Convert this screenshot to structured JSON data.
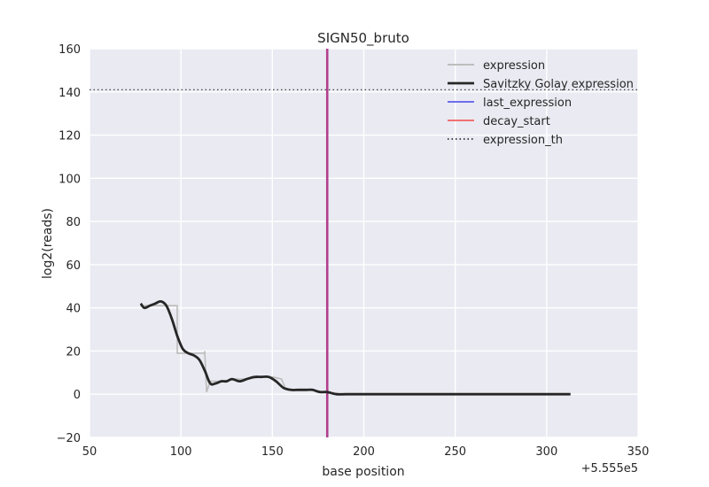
{
  "chart_data": {
    "type": "line",
    "title": "SIGN50_bruto",
    "xlabel": "base position",
    "ylabel": "log2(reads)",
    "offset_text": "+5.555e5",
    "xlim": [
      50,
      350
    ],
    "ylim": [
      -20,
      160
    ],
    "xticks": [
      50,
      100,
      150,
      200,
      250,
      300,
      350
    ],
    "yticks": [
      -20,
      0,
      20,
      40,
      60,
      80,
      100,
      120,
      140,
      160
    ],
    "xtick_labels": [
      "50",
      "100",
      "150",
      "200",
      "250",
      "300",
      "350"
    ],
    "ytick_labels": [
      "−20",
      "0",
      "20",
      "40",
      "60",
      "80",
      "100",
      "120",
      "140",
      "160"
    ],
    "grid": true,
    "legend_position": "top-right",
    "colors": {
      "plot_bg": "#eaeaf2",
      "grid": "#ffffff",
      "expression": "#bdbdbd",
      "savgol": "#262626",
      "last_expression": "#6e6ef0",
      "decay_start": "#f07272",
      "overlap_line": "#b0408e",
      "threshold": "#444444"
    },
    "series": [
      {
        "name": "expression",
        "style": "step",
        "x": [
          78,
          98,
          98,
          113,
          113,
          114,
          116,
          118,
          124,
          130,
          137,
          144,
          150,
          155,
          157,
          160,
          170,
          180,
          190,
          200,
          250,
          313
        ],
        "y": [
          41,
          41,
          19,
          19,
          20,
          1,
          6,
          6,
          6,
          7,
          7,
          8,
          8,
          7,
          3,
          2,
          2,
          1,
          0,
          0,
          0,
          0
        ]
      },
      {
        "name": "Savitzky Golay expression",
        "style": "smooth",
        "x": [
          78,
          80,
          83,
          86,
          89,
          92,
          95,
          98,
          101,
          104,
          107,
          110,
          113,
          116,
          119,
          122,
          125,
          128,
          132,
          136,
          140,
          144,
          148,
          152,
          156,
          160,
          164,
          168,
          172,
          176,
          180,
          185,
          190,
          195,
          200,
          210,
          250,
          313
        ],
        "y": [
          42,
          40,
          41,
          42,
          43,
          41,
          35,
          27,
          21,
          19,
          18,
          16,
          11,
          5,
          5,
          6,
          6,
          7,
          6,
          7,
          8,
          8,
          8,
          6,
          3,
          2,
          2,
          2,
          2,
          1,
          1,
          0,
          0,
          0,
          0,
          0,
          0,
          0
        ]
      },
      {
        "name": "last_expression",
        "style": "vline",
        "x": 180
      },
      {
        "name": "decay_start",
        "style": "vline",
        "x": 180
      },
      {
        "name": "expression_th",
        "style": "hline",
        "y": 141
      }
    ],
    "legend": [
      {
        "label": "expression",
        "key": "expression",
        "dash": false
      },
      {
        "label": "Savitzky Golay expression",
        "key": "savgol",
        "dash": false
      },
      {
        "label": "last_expression",
        "key": "last_expression",
        "dash": false
      },
      {
        "label": "decay_start",
        "key": "decay_start",
        "dash": false
      },
      {
        "label": "expression_th",
        "key": "threshold",
        "dash": true
      }
    ]
  }
}
